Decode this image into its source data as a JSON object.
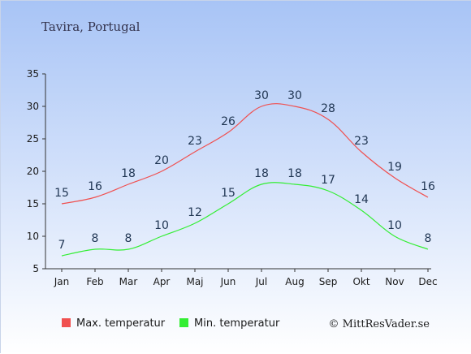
{
  "chart_data": {
    "type": "line",
    "title": "Tavira, Portugal",
    "categories": [
      "Jan",
      "Feb",
      "Mar",
      "Apr",
      "Maj",
      "Jun",
      "Jul",
      "Aug",
      "Sep",
      "Okt",
      "Nov",
      "Dec"
    ],
    "series": [
      {
        "name": "Max. temperatur",
        "color": "#f05050",
        "values": [
          15,
          16,
          18,
          20,
          23,
          26,
          30,
          30,
          28,
          23,
          19,
          16
        ]
      },
      {
        "name": "Min. temperatur",
        "color": "#33ee33",
        "values": [
          7,
          8,
          8,
          10,
          12,
          15,
          18,
          18,
          17,
          14,
          10,
          8
        ]
      }
    ],
    "ylim": [
      5,
      35
    ],
    "yticks": [
      5,
      10,
      15,
      20,
      25,
      30,
      35
    ],
    "grid": false,
    "legend": "bottom-left",
    "credit": "© MittResVader.se",
    "background_top": "#a8c4f6",
    "background_bottom": "#ffffff"
  }
}
